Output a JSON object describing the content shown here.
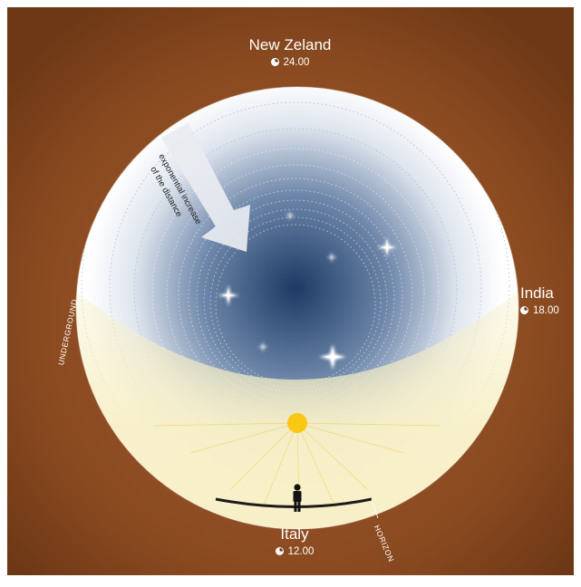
{
  "locations": {
    "north": {
      "name": "New Zeland",
      "time": "24.00"
    },
    "east": {
      "name": "India",
      "time": "18.00"
    },
    "south": {
      "name": "Italy",
      "time": "12.00"
    }
  },
  "arrow_label": {
    "line1": "exponential increase",
    "line2": "of the distance"
  },
  "underground_label": "UNDERGROUND",
  "horizon_label": "HORIZON",
  "icons": {
    "clock": "clock-icon",
    "person": "person-icon",
    "sun": "sun-icon",
    "star": "star-icon"
  },
  "colors": {
    "background": "#8a4a20",
    "sky_center": "#1c3a64",
    "sky_edge": "#ffffff",
    "underground": "#f7efc6",
    "sun": "#f8c812"
  }
}
